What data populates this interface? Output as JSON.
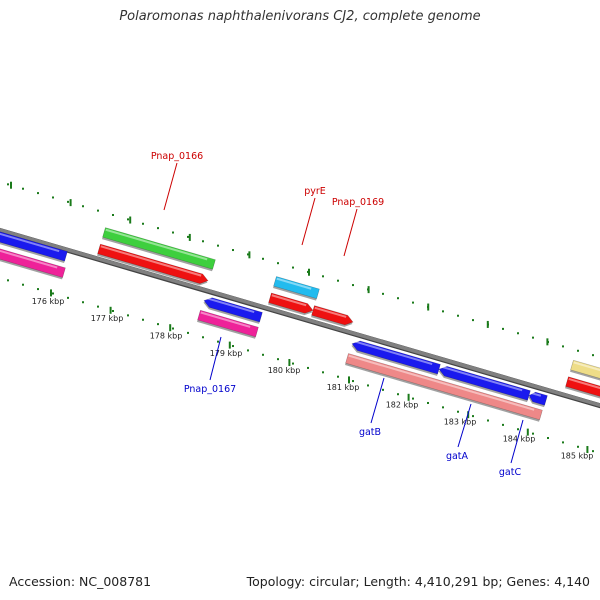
{
  "title": "Polaromonas naphthalenivorans CJ2, complete genome",
  "footer": {
    "accession": "Accession: NC_008781",
    "summary": "Topology: circular; Length: 4,410,291 bp; Genes: 4,140"
  },
  "colors": {
    "backbone": "#808080",
    "tick_outer": "#1a7a1a",
    "tick_inner": "#1a7a1a",
    "forward_label": "#cc0000",
    "reverse_label": "#0000cc",
    "blue": "#1a1aee",
    "magenta": "#ee2299",
    "green": "#3ecf3e",
    "red": "#ee1111",
    "cyan": "#22bbee",
    "salmon": "#ee8888",
    "yellow": "#eedd88"
  },
  "ticks": [
    {
      "label": "176 kbp"
    },
    {
      "label": "177 kbp"
    },
    {
      "label": "178 kbp"
    },
    {
      "label": "179 kbp"
    },
    {
      "label": "180 kbp"
    },
    {
      "label": "181 kbp"
    },
    {
      "label": "182 kbp"
    },
    {
      "label": "183 kbp"
    },
    {
      "label": "184 kbp"
    },
    {
      "label": "185 kbp"
    }
  ],
  "gene_labels": [
    {
      "text": "Pnap_0166",
      "strand": "forward"
    },
    {
      "text": "pyrE",
      "strand": "forward"
    },
    {
      "text": "Pnap_0169",
      "strand": "forward"
    },
    {
      "text": "Pnap_0167",
      "strand": "reverse"
    },
    {
      "text": "gatB",
      "strand": "reverse"
    },
    {
      "text": "gatA",
      "strand": "reverse"
    },
    {
      "text": "gatC",
      "strand": "reverse"
    }
  ],
  "features": [
    {
      "name": "blue-gene-left",
      "color": "blue"
    },
    {
      "name": "magenta-gene-left",
      "color": "magenta"
    },
    {
      "name": "green-gene-pnap0166",
      "color": "green"
    },
    {
      "name": "red-gene-pnap0166",
      "color": "red"
    },
    {
      "name": "blue-gene-pnap0167",
      "color": "blue"
    },
    {
      "name": "magenta-gene-pnap0167",
      "color": "magenta"
    },
    {
      "name": "cyan-gene-pyre",
      "color": "cyan"
    },
    {
      "name": "red-gene-pyre",
      "color": "red"
    },
    {
      "name": "red-gene-pnap0169",
      "color": "red"
    },
    {
      "name": "blue-gene-gatb",
      "color": "blue"
    },
    {
      "name": "blue-gene-gata",
      "color": "blue"
    },
    {
      "name": "blue-gene-gatc",
      "color": "blue"
    },
    {
      "name": "salmon-gene-gat-operon",
      "color": "salmon"
    },
    {
      "name": "yellow-gene-right",
      "color": "yellow"
    },
    {
      "name": "red-gene-right",
      "color": "red"
    }
  ]
}
